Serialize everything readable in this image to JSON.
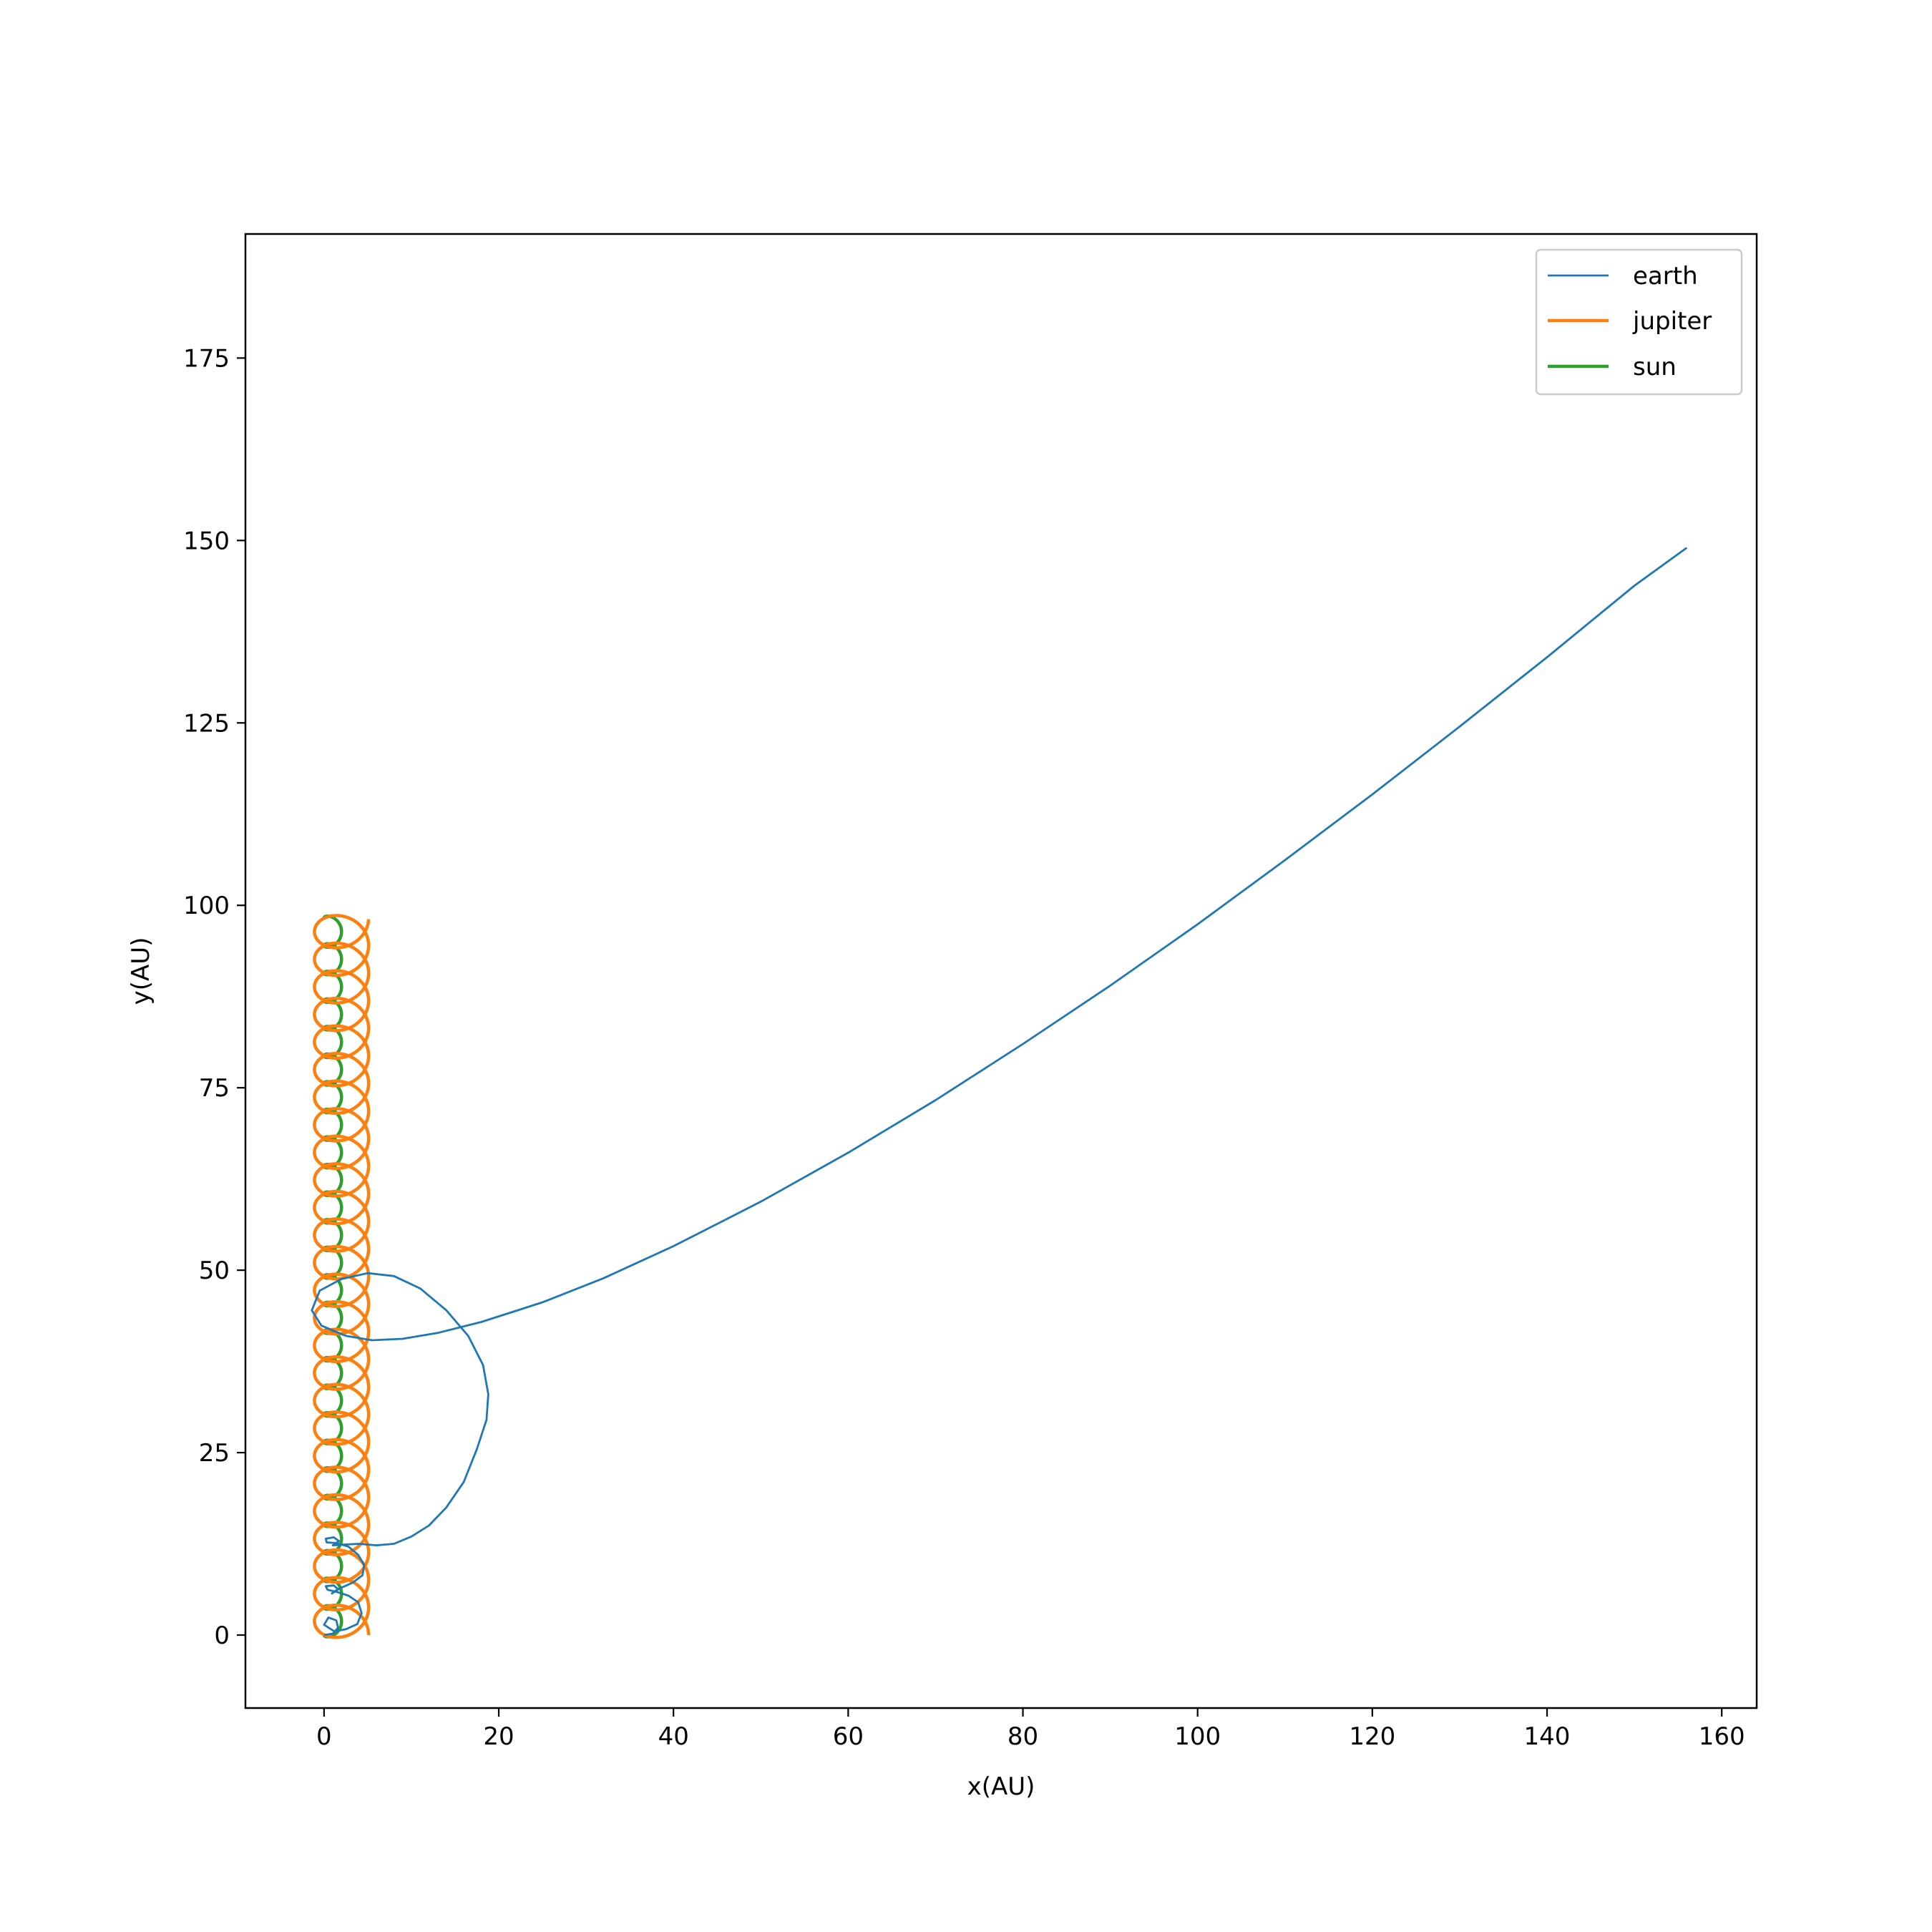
{
  "chart_data": {
    "type": "line",
    "xlabel": "x(AU)",
    "ylabel": "y(AU)",
    "xlim": [
      -9,
      164
    ],
    "ylim": [
      -10,
      192
    ],
    "xticks": [
      0,
      20,
      40,
      60,
      80,
      100,
      120,
      140,
      160
    ],
    "yticks": [
      0,
      25,
      50,
      75,
      100,
      125,
      150,
      175
    ],
    "grid": false,
    "legend_position": "upper right",
    "series": [
      {
        "name": "earth",
        "color": "#1f77b4",
        "points": [
          [
            0,
            0
          ],
          [
            1.0,
            0.2
          ],
          [
            1.6,
            1.0
          ],
          [
            1.4,
            2.0
          ],
          [
            0.5,
            2.4
          ],
          [
            0,
            1.4
          ],
          [
            1.2,
            0.5
          ],
          [
            2.5,
            0.8
          ],
          [
            3.8,
            1.5
          ],
          [
            4.3,
            3.0
          ],
          [
            3.9,
            4.5
          ],
          [
            2.8,
            5.4
          ],
          [
            1.5,
            5.9
          ],
          [
            0.4,
            6.2
          ],
          [
            0.2,
            6.7
          ],
          [
            1.1,
            6.8
          ],
          [
            1.6,
            6.3
          ],
          [
            0.9,
            5.7
          ],
          [
            1.8,
            6.4
          ],
          [
            3.3,
            7.2
          ],
          [
            4.4,
            8.2
          ],
          [
            4.6,
            9.6
          ],
          [
            3.9,
            11.0
          ],
          [
            2.8,
            12.1
          ],
          [
            1.5,
            12.6
          ],
          [
            0.3,
            12.7
          ],
          [
            0.2,
            13.2
          ],
          [
            1.1,
            13.4
          ],
          [
            1.7,
            12.9
          ],
          [
            1.0,
            12.3
          ],
          [
            2.2,
            12.4
          ],
          [
            4.0,
            12.5
          ],
          [
            6.0,
            12.3
          ],
          [
            8.0,
            12.5
          ],
          [
            10.0,
            13.5
          ],
          [
            12.0,
            15.0
          ],
          [
            14.0,
            17.5
          ],
          [
            16.0,
            21.0
          ],
          [
            17.5,
            25.5
          ],
          [
            18.6,
            29.5
          ],
          [
            18.8,
            33.0
          ],
          [
            18.2,
            37.0
          ],
          [
            16.5,
            41.0
          ],
          [
            14.0,
            44.5
          ],
          [
            11.0,
            47.5
          ],
          [
            8.0,
            49.2
          ],
          [
            5.0,
            49.6
          ],
          [
            2.0,
            48.8
          ],
          [
            -0.5,
            47.2
          ],
          [
            -1.4,
            44.5
          ],
          [
            -0.3,
            42.4
          ],
          [
            2.5,
            41.0
          ],
          [
            5.5,
            40.4
          ],
          [
            9.0,
            40.6
          ],
          [
            13.0,
            41.4
          ],
          [
            18.0,
            42.9
          ],
          [
            25.0,
            45.6
          ],
          [
            32.0,
            48.9
          ],
          [
            40.0,
            53.3
          ],
          [
            50.0,
            59.4
          ],
          [
            60.0,
            66.1
          ],
          [
            70.0,
            73.3
          ],
          [
            80.0,
            81.0
          ],
          [
            90.0,
            89.0
          ],
          [
            100.0,
            97.4
          ],
          [
            110.0,
            106.2
          ],
          [
            120.0,
            115.2
          ],
          [
            130.0,
            124.5
          ],
          [
            140.0,
            134.0
          ],
          [
            150.0,
            143.8
          ],
          [
            156.0,
            149.0
          ]
        ]
      },
      {
        "name": "jupiter",
        "color": "#ff7f0e"
      },
      {
        "name": "sun",
        "color": "#2ca02c"
      }
    ]
  }
}
